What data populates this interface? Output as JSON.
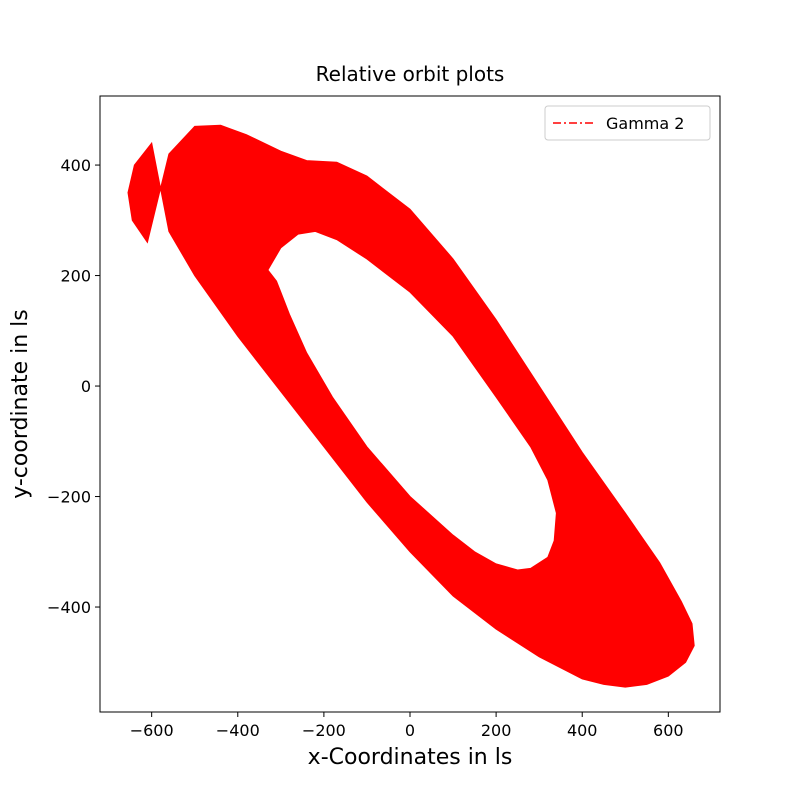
{
  "chart_data": {
    "type": "area",
    "title": "Relative orbit plots",
    "xlabel": "x-Coordinates in ls",
    "ylabel": "y-coordinate in ls",
    "xlim": [
      -720,
      720
    ],
    "ylim": [
      -590,
      525
    ],
    "xticks": [
      -600,
      -400,
      -200,
      0,
      200,
      400,
      600
    ],
    "yticks": [
      -400,
      -200,
      0,
      200,
      400
    ],
    "xtick_labels": [
      "−600",
      "−400",
      "−200",
      "0",
      "200",
      "400",
      "600"
    ],
    "ytick_labels": [
      "−400",
      "−200",
      "0",
      "200",
      "400"
    ],
    "grid": false,
    "legend_position": "top-right",
    "series": [
      {
        "name": "Gamma 2",
        "color": "#ff0000",
        "line_style": "dash-dot",
        "outer_boundary": {
          "x": [
            -600,
            -640,
            -655,
            -645,
            -610,
            -560,
            -500,
            -440,
            -380,
            -300,
            -240,
            -170,
            -100,
            0,
            100,
            200,
            300,
            400,
            500,
            580,
            630,
            655,
            660,
            640,
            600,
            550,
            500,
            450,
            400,
            300,
            200,
            100,
            0,
            -100,
            -200,
            -300,
            -400,
            -500,
            -560,
            -600
          ],
          "y": [
            440,
            400,
            350,
            300,
            260,
            420,
            470,
            472,
            455,
            425,
            408,
            405,
            380,
            320,
            230,
            120,
            0,
            -120,
            -230,
            -320,
            -390,
            -430,
            -470,
            -500,
            -525,
            -540,
            -545,
            -540,
            -530,
            -490,
            -440,
            -380,
            -300,
            -210,
            -110,
            -10,
            90,
            200,
            280,
            440
          ]
        },
        "inner_boundary": {
          "x": [
            -330,
            -300,
            -260,
            -220,
            -170,
            -100,
            0,
            100,
            200,
            280,
            320,
            340,
            335,
            320,
            280,
            250,
            200,
            150,
            100,
            0,
            -100,
            -180,
            -240,
            -280,
            -300,
            -310,
            -320,
            -330
          ],
          "y": [
            210,
            250,
            275,
            280,
            265,
            230,
            170,
            90,
            -20,
            -110,
            -170,
            -230,
            -280,
            -310,
            -330,
            -333,
            -322,
            -300,
            -270,
            -200,
            -110,
            -20,
            60,
            130,
            170,
            190,
            200,
            210
          ]
        }
      }
    ]
  }
}
